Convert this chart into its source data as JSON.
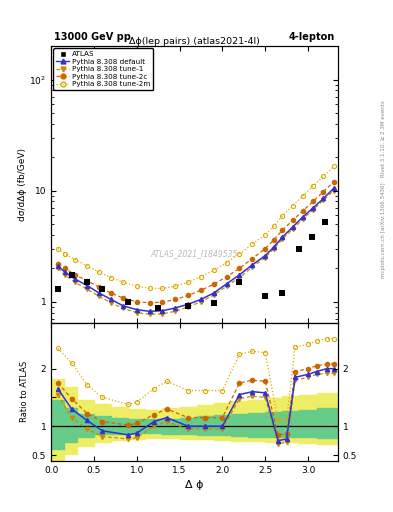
{
  "title_left": "13000 GeV pp",
  "title_right": "4-lepton",
  "plot_title": "Δϕ(lep pairs) (atlas2021-4l)",
  "xlabel": "Δ ϕ",
  "ylabel_top": "dσ/dΔϕ (fb/GeV)",
  "ylabel_bot": "Ratio to ATLAS",
  "right_label": "Rivet 3.1.10, ≥ 2.3M events",
  "right_label2": "mcplots.cern.ch [arXiv:1306.3436]",
  "watermark": "ATLAS_2021_I1849535",
  "dphi_atlas": [
    0.08,
    0.24,
    0.42,
    0.6,
    0.9,
    1.25,
    1.6,
    1.9,
    2.2,
    2.5,
    2.7,
    2.9,
    3.05,
    3.2
  ],
  "atlas_y": [
    1.3,
    1.75,
    1.5,
    1.3,
    1.0,
    0.88,
    0.92,
    0.97,
    1.5,
    1.12,
    1.2,
    3.0,
    3.8,
    5.2
  ],
  "dphi_mc": [
    0.08,
    0.16,
    0.28,
    0.42,
    0.56,
    0.7,
    0.84,
    1.0,
    1.15,
    1.3,
    1.45,
    1.6,
    1.75,
    1.9,
    2.05,
    2.2,
    2.35,
    2.5,
    2.6,
    2.7,
    2.82,
    2.94,
    3.06,
    3.18,
    3.3
  ],
  "default_y": [
    2.1,
    1.85,
    1.6,
    1.4,
    1.2,
    1.05,
    0.92,
    0.85,
    0.82,
    0.83,
    0.88,
    0.95,
    1.05,
    1.2,
    1.45,
    1.75,
    2.15,
    2.6,
    3.1,
    3.8,
    4.7,
    5.8,
    7.0,
    8.5,
    10.5
  ],
  "tune1_y": [
    2.0,
    1.75,
    1.5,
    1.3,
    1.12,
    0.98,
    0.87,
    0.8,
    0.77,
    0.78,
    0.82,
    0.9,
    1.0,
    1.15,
    1.38,
    1.65,
    2.05,
    2.5,
    3.0,
    3.65,
    4.5,
    5.55,
    6.75,
    8.2,
    10.0
  ],
  "tune2c_y": [
    2.2,
    2.0,
    1.75,
    1.55,
    1.35,
    1.2,
    1.08,
    1.0,
    0.98,
    0.99,
    1.05,
    1.14,
    1.27,
    1.44,
    1.68,
    2.0,
    2.45,
    3.0,
    3.6,
    4.4,
    5.4,
    6.6,
    8.0,
    9.8,
    12.0
  ],
  "tune2m_y": [
    3.0,
    2.7,
    2.4,
    2.1,
    1.85,
    1.65,
    1.5,
    1.38,
    1.32,
    1.32,
    1.38,
    1.5,
    1.68,
    1.92,
    2.25,
    2.7,
    3.3,
    4.0,
    4.8,
    5.9,
    7.3,
    9.0,
    11.0,
    13.5,
    16.5
  ],
  "ratio_dphi": [
    0.08,
    0.24,
    0.42,
    0.6,
    0.9,
    1.0,
    1.2,
    1.35,
    1.6,
    1.8,
    2.0,
    2.2,
    2.35,
    2.5,
    2.65,
    2.75,
    2.85,
    3.0,
    3.1,
    3.22,
    3.3
  ],
  "ratio_default": [
    1.65,
    1.3,
    1.1,
    0.92,
    0.85,
    0.88,
    1.08,
    1.15,
    1.0,
    1.0,
    1.0,
    1.55,
    1.6,
    1.58,
    0.75,
    0.78,
    1.85,
    1.9,
    1.95,
    2.0,
    2.0
  ],
  "ratio_tune1": [
    1.55,
    1.15,
    0.95,
    0.82,
    0.78,
    0.8,
    1.0,
    1.08,
    0.95,
    0.95,
    0.95,
    1.48,
    1.52,
    1.5,
    0.7,
    0.72,
    1.8,
    1.85,
    1.9,
    1.92,
    1.92
  ],
  "ratio_tune2c": [
    1.75,
    1.48,
    1.22,
    1.08,
    1.02,
    1.05,
    1.2,
    1.3,
    1.15,
    1.15,
    1.15,
    1.75,
    1.8,
    1.78,
    0.85,
    0.87,
    1.95,
    2.0,
    2.05,
    2.08,
    2.08
  ],
  "ratio_tune2m": [
    2.35,
    2.1,
    1.72,
    1.5,
    1.38,
    1.42,
    1.65,
    1.78,
    1.62,
    1.62,
    1.62,
    2.25,
    2.3,
    2.28,
    1.1,
    1.12,
    2.38,
    2.42,
    2.48,
    2.52,
    2.52
  ],
  "band_x": [
    0.0,
    0.15,
    0.3,
    0.5,
    0.7,
    0.9,
    1.1,
    1.3,
    1.5,
    1.7,
    1.9,
    2.1,
    2.3,
    2.5,
    2.7,
    2.9,
    3.1,
    3.35
  ],
  "band_yellow_lo": [
    0.38,
    0.52,
    0.65,
    0.72,
    0.76,
    0.78,
    0.79,
    0.79,
    0.78,
    0.77,
    0.76,
    0.75,
    0.74,
    0.73,
    0.72,
    0.71,
    0.7,
    0.7
  ],
  "band_yellow_hi": [
    1.82,
    1.68,
    1.45,
    1.38,
    1.33,
    1.3,
    1.29,
    1.31,
    1.34,
    1.37,
    1.4,
    1.43,
    1.46,
    1.49,
    1.52,
    1.55,
    1.58,
    1.58
  ],
  "band_green_lo": [
    0.6,
    0.72,
    0.82,
    0.86,
    0.87,
    0.88,
    0.88,
    0.87,
    0.86,
    0.85,
    0.84,
    0.83,
    0.82,
    0.82,
    0.81,
    0.81,
    0.8,
    0.8
  ],
  "band_green_hi": [
    1.45,
    1.32,
    1.22,
    1.18,
    1.15,
    1.13,
    1.12,
    1.13,
    1.15,
    1.17,
    1.19,
    1.21,
    1.23,
    1.25,
    1.27,
    1.29,
    1.31,
    1.31
  ],
  "color_default": "#3333cc",
  "color_tune1": "#cc8800",
  "color_tune2c": "#cc6600",
  "color_tune2m": "#ddaa00",
  "color_atlas": "#000000",
  "color_green": "#66cc88",
  "color_yellow": "#eeee66"
}
